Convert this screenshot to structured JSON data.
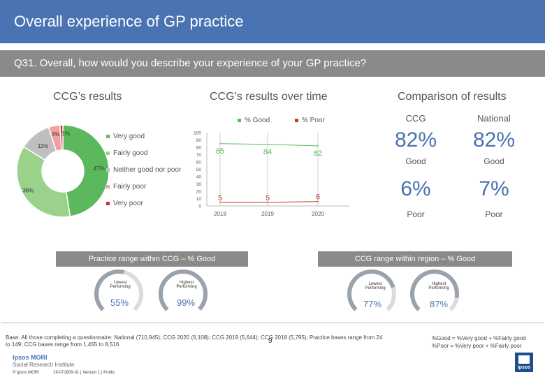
{
  "header": {
    "title": "Overall experience of GP practice"
  },
  "question": {
    "text": "Q31. Overall, how would you describe your experience of your GP practice?"
  },
  "ccg_results": {
    "heading": "CCG’s results",
    "slice_labels": [
      "47%",
      "36%",
      "11%",
      "4%",
      "1%"
    ],
    "legend": [
      "Very good",
      "Fairly good",
      "Neither good nor poor",
      "Fairly poor",
      "Very poor"
    ],
    "colors": [
      "#5cb85c",
      "#9ad18b",
      "#bfbfbf",
      "#f2a0a0",
      "#c0392b"
    ]
  },
  "time_chart": {
    "heading": "CCG’s results over time",
    "legend_good": "% Good",
    "legend_poor": "% Poor"
  },
  "comparison": {
    "heading": "Comparison of results",
    "col_ccg": "CCG",
    "col_national": "National",
    "good_ccg": "82%",
    "good_national": "82%",
    "good_label": "Good",
    "poor_ccg": "6%",
    "poor_national": "7%",
    "poor_label": "Poor"
  },
  "practice_range": {
    "heading": "Practice range within CCG – % Good",
    "lowest_label": "Lowest Performing",
    "highest_label": "Highest Performing",
    "lowest_value": "55%",
    "highest_value": "99%",
    "lowest_frac": 0.55,
    "highest_frac": 0.99
  },
  "ccg_range": {
    "heading": "CCG range within region – % Good",
    "lowest_label": "Lowest Performing",
    "highest_label": "Highest Performing",
    "lowest_value": "77%",
    "highest_value": "87%",
    "lowest_frac": 0.77,
    "highest_frac": 0.87
  },
  "footer": {
    "base": "Base: All those completing a questionnaire: National (710,945); CCG 2020 (6,108); CCG 2019 (5,644); CCG 2018 (5,795); Practice bases range from 24 to 149; CCG bases range from 1,455 to 8,516",
    "note_good": "%Good = %Very good + %Fairly good",
    "note_poor": "%Poor = %Very poor + %Fairly poor",
    "logo_line1": "Ipsos MORI",
    "logo_line2": "Social Research Institute",
    "copyright": "© Ipsos MORI",
    "version": "19-071809-01 | Version 1 | Public",
    "page": "9",
    "logo_text": "ipsos"
  },
  "chart_data": [
    {
      "type": "pie",
      "categories": [
        "Very good",
        "Fairly good",
        "Neither good nor poor",
        "Fairly poor",
        "Very poor"
      ],
      "values": [
        47,
        36,
        11,
        4,
        1
      ]
    },
    {
      "type": "line",
      "x": [
        "2018",
        "2019",
        "2020"
      ],
      "series": [
        {
          "name": "% Good",
          "values": [
            85,
            84,
            82
          ]
        },
        {
          "name": "% Poor",
          "values": [
            5,
            5,
            6
          ]
        }
      ],
      "ylim": [
        0,
        100
      ],
      "yticks": [
        0,
        10,
        20,
        30,
        40,
        50,
        60,
        70,
        80,
        90,
        100
      ]
    }
  ]
}
